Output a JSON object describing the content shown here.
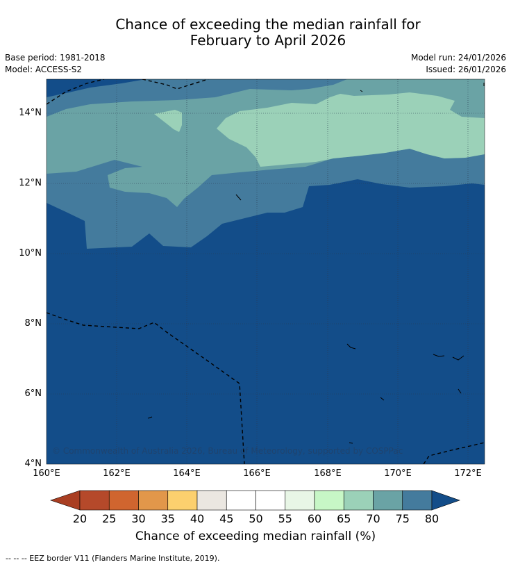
{
  "header": {
    "title_line1": "Chance of exceeding the median rainfall for",
    "title_line2": "February to April 2026",
    "base_period": "Base period: 1981-2018",
    "model": "Model: ACCESS-S2",
    "model_run": "Model run: 24/01/2026",
    "issued": "Issued: 26/01/2026"
  },
  "map": {
    "lat_labels": [
      "14°N",
      "12°N",
      "10°N",
      "8°N",
      "6°N",
      "4°N"
    ],
    "lon_labels": [
      "160°E",
      "162°E",
      "164°E",
      "166°E",
      "168°E",
      "170°E",
      "172°E"
    ],
    "copyright": "© Commonwealth of Australia 2026, Bureau of Meteorology, supported by COSPPac",
    "eez_style": "dashed black",
    "gridlines": true
  },
  "colorbar": {
    "ticks": [
      "20",
      "25",
      "30",
      "35",
      "40",
      "45",
      "50",
      "55",
      "60",
      "65",
      "70",
      "75",
      "80"
    ],
    "colors": [
      "#a93e22",
      "#b5492a",
      "#d0652f",
      "#e2974a",
      "#fcd06e",
      "#ebe7e1",
      "#ffffff",
      "#ffffff",
      "#e8f6e6",
      "#c7f7c6",
      "#9bd1b8",
      "#6aa3a5",
      "#447b9d",
      "#134d89"
    ],
    "label": "Chance of exceeding median rainfall (%)"
  },
  "legend": {
    "eez_note": "--  --  -- EEZ border V11 (Flanders Marine Institute, 2019)."
  }
}
